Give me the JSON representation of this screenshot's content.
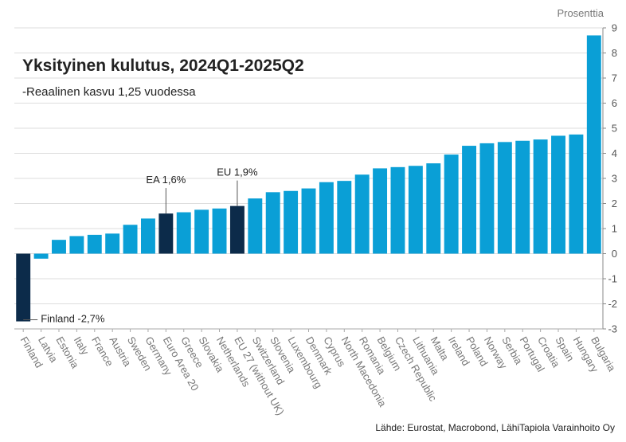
{
  "chart_data": {
    "type": "bar",
    "title": "Yksityinen kulutus, 2024Q1-2025Q2",
    "subtitle": "-Reaalinen kasvu 1,25 vuodessa",
    "unit_label": "Prosenttia",
    "source": "Lähde: Eurostat, Macrobond, LähiTapiola Varainhoito Oy",
    "categories": [
      "Finland",
      "Latvia",
      "Estonia",
      "Italy",
      "France",
      "Austria",
      "Sweden",
      "Germany",
      "Euro Area 20",
      "Greece",
      "Slovakia",
      "Netherlands",
      "EU 27 (without UK)",
      "Switzerland",
      "Slovenia",
      "Luxembourg",
      "Denmark",
      "Cyprus",
      "North Macedonia",
      "Romania",
      "Belgium",
      "Czech Republic",
      "Lithuania",
      "Malta",
      "Ireland",
      "Poland",
      "Norway",
      "Serbia",
      "Portugal",
      "Croatia",
      "Spain",
      "Hungary",
      "Bulgaria"
    ],
    "values": [
      -2.7,
      -0.2,
      0.55,
      0.7,
      0.75,
      0.8,
      1.15,
      1.4,
      1.6,
      1.65,
      1.75,
      1.8,
      1.9,
      2.2,
      2.45,
      2.5,
      2.6,
      2.85,
      2.9,
      3.15,
      3.4,
      3.45,
      3.5,
      3.6,
      3.95,
      4.3,
      4.4,
      4.45,
      4.5,
      4.55,
      4.7,
      4.75,
      8.7
    ],
    "highlight": [
      "Finland",
      "Euro Area 20",
      "EU 27 (without UK)"
    ],
    "colors": {
      "bar": "#0a9fd6",
      "highlight": "#0c2b4a",
      "grid": "#dddddd"
    },
    "ylim": [
      -3,
      9
    ],
    "yticks": [
      -3,
      -2,
      -1,
      0,
      1,
      2,
      3,
      4,
      5,
      6,
      7,
      8,
      9
    ],
    "grid": true,
    "annotations": [
      {
        "category": "EU 27 (without UK)",
        "text": "EU 1,9%"
      },
      {
        "category": "Euro Area 20",
        "text": "EA 1,6%"
      },
      {
        "category": "Finland",
        "text": "Finland -2,7%"
      }
    ]
  }
}
